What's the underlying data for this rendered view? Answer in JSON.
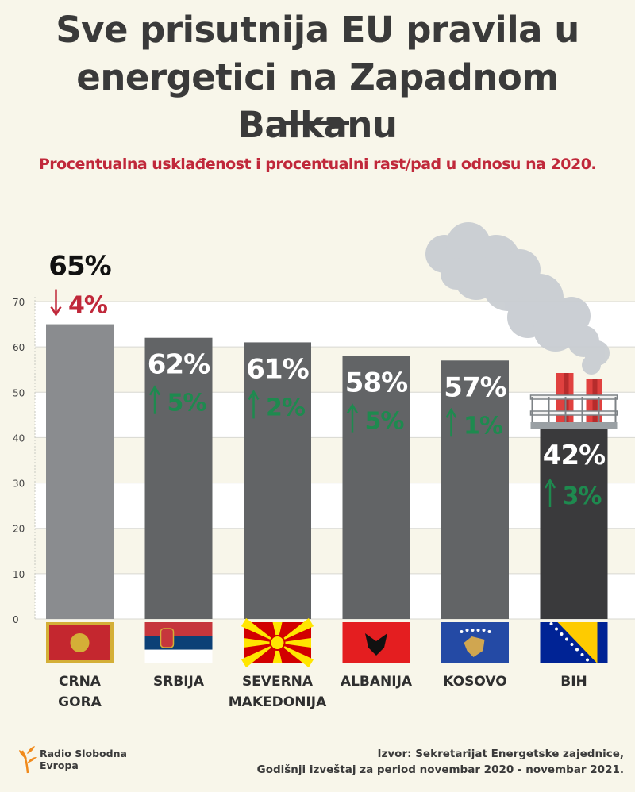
{
  "header": {
    "title_line1": "Sve prisutnija EU pravila u",
    "title_line2": "energetici na Zapadnom Balkanu",
    "subtitle": "Procentualna usklađenost i procentualni rast/pad u odnosu na 2020."
  },
  "chart_data": {
    "type": "bar",
    "categories": [
      "CRNA GORA",
      "SRBIJA",
      "SEVERNA MAKEDONIJA",
      "ALBANIJA",
      "KOSOVO",
      "BIH"
    ],
    "category_lines": [
      [
        "CRNA",
        "GORA"
      ],
      [
        "SRBIJA"
      ],
      [
        "SEVERNA",
        "MAKEDONIJA"
      ],
      [
        "ALBANIJA"
      ],
      [
        "KOSOVO"
      ],
      [
        "BIH"
      ]
    ],
    "values": [
      65,
      62,
      61,
      58,
      57,
      42
    ],
    "value_labels": [
      "65%",
      "62%",
      "61%",
      "58%",
      "57%",
      "42%"
    ],
    "change_labels": [
      "4%",
      "5%",
      "2%",
      "5%",
      "1%",
      "3%"
    ],
    "change_direction": [
      "down",
      "up",
      "up",
      "up",
      "up",
      "up"
    ],
    "ylim": [
      0,
      70
    ],
    "yticks": [
      0,
      10,
      20,
      30,
      40,
      50,
      60,
      70
    ],
    "grid": true,
    "colors": {
      "bar_first": "#8a8c8f",
      "bar_middle": "#626466",
      "bar_last": "#3a3a3c",
      "increase": "#1e8a4f",
      "decrease": "#c0283a",
      "grid_band": "#ffffff"
    },
    "icons": [
      "flag-montenegro-icon",
      "flag-serbia-icon",
      "flag-north-macedonia-icon",
      "flag-albania-icon",
      "flag-kosovo-icon",
      "flag-bih-icon",
      "factory-smoke-icon"
    ]
  },
  "footer": {
    "source_line1": "Izvor: Sekretarijat Energetske zajednice,",
    "source_line2": "Godišnji izveštaj za period novembar 2020 - novembar 2021.",
    "logo_line1": "Radio Slobodna",
    "logo_line2": "Evropa"
  }
}
